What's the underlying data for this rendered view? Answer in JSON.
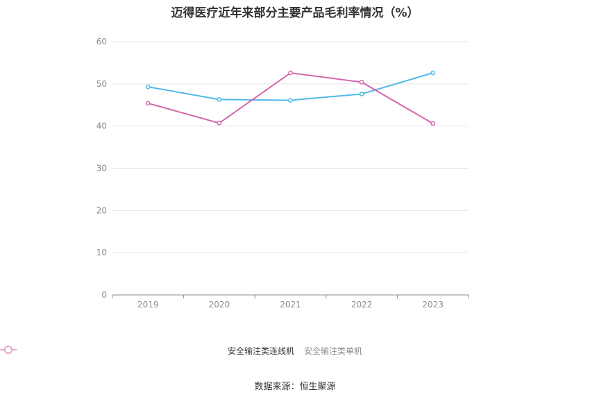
{
  "chart_data": {
    "type": "line",
    "title": "迈得医疗近年来部分主要产品毛利率情况（%）",
    "x": [
      "2019",
      "2020",
      "2021",
      "2022",
      "2023"
    ],
    "ylim": [
      0,
      60
    ],
    "yticks": [
      0,
      10,
      20,
      30,
      40,
      50,
      60
    ],
    "grid": true,
    "legend_position": "bottom",
    "series": [
      {
        "name": "安全输注类连线机",
        "color": "#4fb9ea",
        "values": [
          49.3,
          46.3,
          46.1,
          47.6,
          52.6
        ]
      },
      {
        "name": "安全输注类单机",
        "color": "#d466ab",
        "values": [
          45.4,
          40.7,
          52.6,
          50.4,
          40.6
        ]
      }
    ]
  },
  "source": "数据来源：恒生聚源"
}
